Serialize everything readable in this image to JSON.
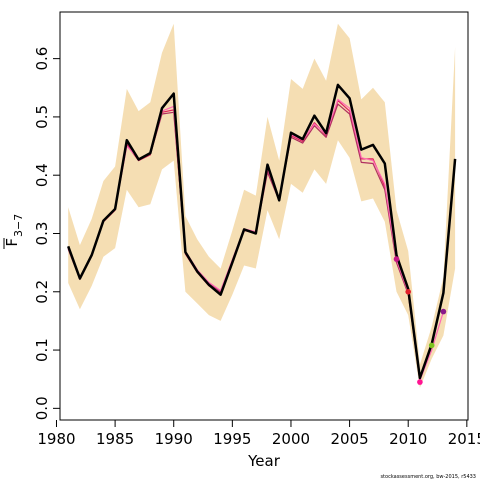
{
  "chart_data": {
    "type": "line",
    "xlabel": "Year",
    "ylabel": {
      "main": "F",
      "sub": "3−7"
    },
    "xlim": [
      1980.3,
      2015.1
    ],
    "ylim": [
      -0.02,
      0.68
    ],
    "x_ticks": [
      1980,
      1985,
      1990,
      1995,
      2000,
      2005,
      2010,
      2015
    ],
    "y_ticks": [
      0.0,
      0.1,
      0.2,
      0.3,
      0.4,
      0.5,
      0.6
    ],
    "y_tick_labels": [
      "0.0",
      "0.1",
      "0.2",
      "0.3",
      "0.4",
      "0.5",
      "0.6"
    ],
    "footnote": "stockassessment.org, bw-2015, r5433",
    "band": {
      "name": "confidence band",
      "color": "#f5deb3",
      "x": [
        1981,
        1982,
        1983,
        1984,
        1985,
        1986,
        1987,
        1988,
        1989,
        1990,
        1991,
        1992,
        1993,
        1994,
        1995,
        1996,
        1997,
        1998,
        1999,
        2000,
        2001,
        2002,
        2003,
        2004,
        2005,
        2006,
        2007,
        2008,
        2009,
        2010,
        2011,
        2012,
        2013,
        2014
      ],
      "lower": [
        0.215,
        0.17,
        0.21,
        0.26,
        0.275,
        0.375,
        0.345,
        0.35,
        0.41,
        0.425,
        0.2,
        0.18,
        0.16,
        0.15,
        0.195,
        0.245,
        0.24,
        0.34,
        0.29,
        0.385,
        0.37,
        0.41,
        0.385,
        0.46,
        0.43,
        0.355,
        0.36,
        0.32,
        0.2,
        0.16,
        0.035,
        0.085,
        0.125,
        0.24
      ],
      "upper": [
        0.345,
        0.28,
        0.325,
        0.39,
        0.415,
        0.548,
        0.51,
        0.525,
        0.61,
        0.66,
        0.33,
        0.29,
        0.26,
        0.24,
        0.305,
        0.375,
        0.365,
        0.5,
        0.425,
        0.565,
        0.548,
        0.6,
        0.562,
        0.66,
        0.635,
        0.53,
        0.55,
        0.525,
        0.34,
        0.27,
        0.075,
        0.14,
        0.225,
        0.62
      ]
    },
    "series": [
      {
        "color": "#000000",
        "x": [
          1981,
          1982,
          1983,
          1984,
          1985,
          1986,
          1987,
          1988,
          1989,
          1990,
          1991,
          1992,
          1993,
          1994,
          1995,
          1996,
          1997,
          1998,
          1999,
          2000,
          2001,
          2002,
          2003,
          2004,
          2005,
          2006,
          2007,
          2008,
          2009,
          2010,
          2011,
          2012,
          2013,
          2014
        ],
        "values": [
          0.278,
          0.223,
          0.263,
          0.322,
          0.342,
          0.46,
          0.427,
          0.438,
          0.515,
          0.54,
          0.268,
          0.235,
          0.212,
          0.195,
          0.25,
          0.307,
          0.3,
          0.418,
          0.357,
          0.473,
          0.462,
          0.502,
          0.472,
          0.555,
          0.532,
          0.444,
          0.452,
          0.42,
          0.263,
          0.205,
          0.052,
          0.11,
          0.198,
          0.428
        ]
      },
      {
        "color": "#e0215c",
        "x": [
          1981,
          1982,
          1983,
          1984,
          1985,
          1986,
          1987,
          1988,
          1989,
          1990,
          1991,
          1992,
          1993,
          1994,
          1995,
          1996,
          1997,
          1998,
          1999,
          2000,
          2001,
          2002,
          2003,
          2004,
          2005,
          2006,
          2007,
          2008,
          2009,
          2010,
          2011
        ],
        "values": [
          0.275,
          0.222,
          0.262,
          0.32,
          0.34,
          0.452,
          0.425,
          0.435,
          0.508,
          0.512,
          0.265,
          0.233,
          0.21,
          0.198,
          0.252,
          0.305,
          0.302,
          0.41,
          0.36,
          0.468,
          0.458,
          0.49,
          0.468,
          0.528,
          0.51,
          0.428,
          0.428,
          0.38,
          0.258,
          0.2,
          0.045
        ]
      },
      {
        "color": "#b03060",
        "x": [
          1981,
          1982,
          1983,
          1984,
          1985,
          1986,
          1987,
          1988,
          1989,
          1990,
          1991,
          1992,
          1993,
          1994,
          1995,
          1996,
          1997,
          1998,
          1999,
          2000,
          2001,
          2002,
          2003,
          2004,
          2005,
          2006,
          2007,
          2008,
          2009,
          2010,
          2011,
          2012
        ],
        "values": [
          0.273,
          0.221,
          0.261,
          0.321,
          0.343,
          0.455,
          0.426,
          0.436,
          0.505,
          0.508,
          0.266,
          0.236,
          0.214,
          0.2,
          0.253,
          0.306,
          0.3,
          0.405,
          0.356,
          0.465,
          0.455,
          0.485,
          0.465,
          0.522,
          0.505,
          0.422,
          0.42,
          0.375,
          0.25,
          0.196,
          0.05,
          0.108
        ]
      },
      {
        "color": "#ff69b4",
        "x": [
          1981,
          1982,
          1983,
          1984,
          1985,
          1986,
          1987,
          1988,
          1989,
          1990,
          1991,
          1992,
          1993,
          1994,
          1995,
          1996,
          1997,
          1998,
          1999,
          2000,
          2001,
          2002,
          2003,
          2004,
          2005,
          2006,
          2007,
          2008,
          2009,
          2010,
          2011,
          2012,
          2013
        ],
        "values": [
          0.274,
          0.224,
          0.264,
          0.323,
          0.341,
          0.45,
          0.428,
          0.437,
          0.51,
          0.518,
          0.27,
          0.238,
          0.216,
          0.202,
          0.255,
          0.308,
          0.303,
          0.412,
          0.358,
          0.47,
          0.46,
          0.488,
          0.47,
          0.53,
          0.515,
          0.43,
          0.425,
          0.385,
          0.255,
          0.2,
          0.048,
          0.1,
          0.166
        ]
      }
    ],
    "endpoints": [
      {
        "x": 2009,
        "y": 0.256,
        "color": "#c71585"
      },
      {
        "x": 2010,
        "y": 0.2,
        "color": "#e0202a"
      },
      {
        "x": 2011,
        "y": 0.045,
        "color": "#ff1493"
      },
      {
        "x": 2012,
        "y": 0.108,
        "color": "#7cc41f"
      },
      {
        "x": 2013,
        "y": 0.166,
        "color": "#8b1a8b"
      }
    ]
  }
}
